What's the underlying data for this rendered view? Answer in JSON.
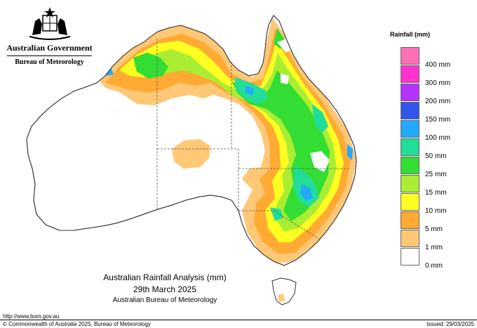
{
  "branding": {
    "government": "Australian Government",
    "bureau": "Bureau of Meteorology",
    "crest_icon": "coat-of-arms-icon"
  },
  "legend": {
    "title": "Rainfall (mm)",
    "items": [
      {
        "label": "",
        "color": "#ff6fb6"
      },
      {
        "label": "400 mm",
        "color": "#ff33cc"
      },
      {
        "label": "300 mm",
        "color": "#b333ff"
      },
      {
        "label": "200 mm",
        "color": "#3355ee"
      },
      {
        "label": "150 mm",
        "color": "#22aaff"
      },
      {
        "label": "100 mm",
        "color": "#22dd99"
      },
      {
        "label": "50 mm",
        "color": "#33dd33"
      },
      {
        "label": "25 mm",
        "color": "#aaee33"
      },
      {
        "label": "15 mm",
        "color": "#ffff22"
      },
      {
        "label": "10 mm",
        "color": "#ffaa33"
      },
      {
        "label": "5 mm",
        "color": "#ffc877"
      },
      {
        "label": "1 mm",
        "color": "#ffffff"
      },
      {
        "label": "0 mm",
        "color": ""
      }
    ]
  },
  "caption": {
    "title": "Australian Rainfall Analysis (mm)",
    "date": "29th March 2025",
    "org": "Australian Bureau of Meteorology"
  },
  "footer": {
    "url": "http://www.bom.gov.au",
    "copyright": "© Commonwealth of Australia 2025, Bureau of Meteorology",
    "issued": "Issued: 29/03/2025"
  },
  "colors": {
    "land": "#ffffff",
    "outline": "#333333",
    "light_orange": "#ffc877",
    "orange": "#ffaa33",
    "yellow": "#ffff22",
    "yellow_green": "#aaee33",
    "green": "#33dd33",
    "teal": "#22dd99",
    "blue": "#22aaff"
  }
}
